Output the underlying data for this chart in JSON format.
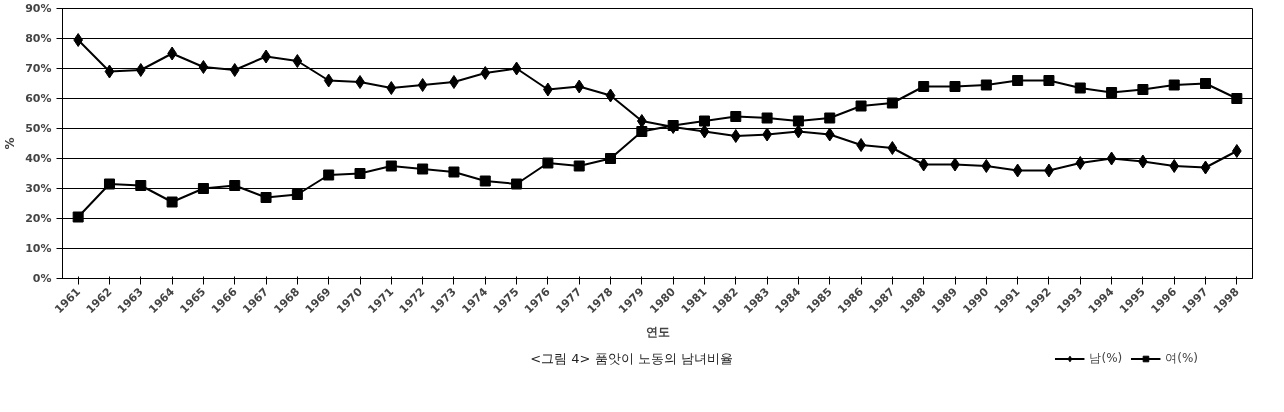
{
  "chart_data": {
    "type": "line",
    "title": "<그림 4> 품앗이 노동의 남녀비율",
    "xlabel": "연도",
    "ylabel": "%",
    "categories": [
      "1961",
      "1962",
      "1963",
      "1964",
      "1965",
      "1966",
      "1967",
      "1968",
      "1969",
      "1970",
      "1971",
      "1972",
      "1973",
      "1974",
      "1975",
      "1976",
      "1977",
      "1978",
      "1979",
      "1980",
      "1981",
      "1982",
      "1983",
      "1984",
      "1985",
      "1986",
      "1987",
      "1988",
      "1989",
      "1990",
      "1991",
      "1992",
      "1993",
      "1994",
      "1995",
      "1996",
      "1997",
      "1998"
    ],
    "series": [
      {
        "name": "남(%)",
        "color": "#000000",
        "marker": "diamond",
        "values": [
          79.5,
          69,
          69.5,
          75,
          70.5,
          69.5,
          74,
          72.5,
          66,
          65.5,
          63.5,
          64.5,
          65.5,
          68.5,
          70,
          63,
          64,
          61,
          52.5,
          50.5,
          49,
          47.5,
          48,
          49,
          48,
          44.5,
          43.5,
          38,
          38,
          37.5,
          36,
          36,
          38.5,
          40,
          39,
          37.5,
          37,
          42.5
        ]
      },
      {
        "name": "여(%)",
        "color": "#000000",
        "marker": "square",
        "values": [
          20.5,
          31.5,
          31,
          25.5,
          30,
          31,
          27,
          28,
          34.5,
          35,
          37.5,
          36.5,
          35.5,
          32.5,
          31.5,
          38.5,
          37.5,
          40,
          49,
          51,
          52.5,
          54,
          53.5,
          52.5,
          53.5,
          57.5,
          58.5,
          64,
          64,
          64.5,
          66,
          66,
          63.5,
          62,
          63,
          64.5,
          65,
          60
        ]
      }
    ],
    "ylim": [
      0,
      90
    ],
    "yticks": [
      {
        "value": 0,
        "label": "0%"
      },
      {
        "value": 10,
        "label": "10%"
      },
      {
        "value": 20,
        "label": "20%"
      },
      {
        "value": 30,
        "label": "30%"
      },
      {
        "value": 40,
        "label": "40%"
      },
      {
        "value": 50,
        "label": "50%"
      },
      {
        "value": 60,
        "label": "60%"
      },
      {
        "value": 70,
        "label": "70%"
      },
      {
        "value": 80,
        "label": "80%"
      },
      {
        "value": 90,
        "label": "90%"
      }
    ],
    "grid": "y",
    "legend": "bottom right",
    "line_style": "solid"
  }
}
